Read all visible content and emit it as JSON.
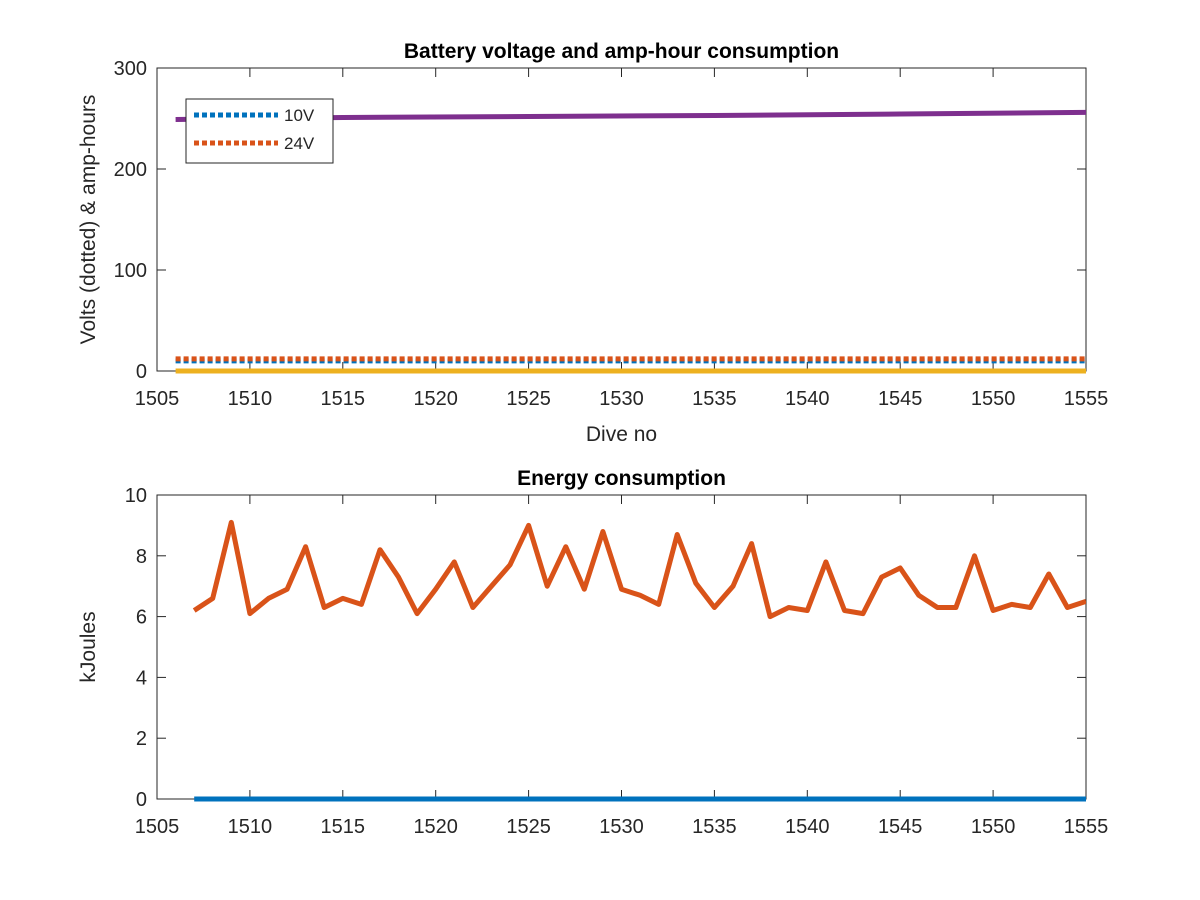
{
  "figure": {
    "background": "#ffffff"
  },
  "chart_data": [
    {
      "type": "line",
      "title": "Battery voltage and amp-hour consumption",
      "xlabel": "Dive no",
      "ylabel": "Volts (dotted) & amp-hours",
      "xlim": [
        1505,
        1555
      ],
      "ylim": [
        0,
        300
      ],
      "xticks": [
        1505,
        1510,
        1515,
        1520,
        1525,
        1530,
        1535,
        1540,
        1545,
        1550,
        1555
      ],
      "yticks": [
        0,
        100,
        200,
        300
      ],
      "grid": false,
      "legend_position": "top-left",
      "series": [
        {
          "name": "10V",
          "style": "dotted",
          "color": "#0072bd",
          "x": [
            1506,
            1555
          ],
          "y": [
            10,
            10
          ]
        },
        {
          "name": "24V",
          "style": "dotted",
          "color": "#d95319",
          "x": [
            1506,
            1555
          ],
          "y": [
            12,
            12
          ]
        },
        {
          "style": "solid",
          "color": "#edb120",
          "x": [
            1506,
            1555
          ],
          "y": [
            0,
            0
          ]
        },
        {
          "style": "solid",
          "color": "#7e2f8e",
          "x": [
            1506,
            1515,
            1525,
            1535,
            1545,
            1555
          ],
          "y": [
            249,
            251,
            252,
            253,
            254.5,
            256
          ]
        }
      ]
    },
    {
      "type": "line",
      "title": "Energy consumption",
      "xlabel": "",
      "ylabel": "kJoules",
      "xlim": [
        1505,
        1555
      ],
      "ylim": [
        0,
        10
      ],
      "xticks": [
        1505,
        1510,
        1515,
        1520,
        1525,
        1530,
        1535,
        1540,
        1545,
        1550,
        1555
      ],
      "yticks": [
        0,
        2,
        4,
        6,
        8,
        10
      ],
      "grid": false,
      "series": [
        {
          "style": "solid",
          "color": "#0072bd",
          "x": [
            1507,
            1555
          ],
          "y": [
            0,
            0
          ]
        },
        {
          "style": "solid",
          "color": "#d95319",
          "x": [
            1507,
            1508,
            1509,
            1510,
            1511,
            1512,
            1513,
            1514,
            1515,
            1516,
            1517,
            1518,
            1519,
            1520,
            1521,
            1522,
            1523,
            1524,
            1525,
            1526,
            1527,
            1528,
            1529,
            1530,
            1531,
            1532,
            1533,
            1534,
            1535,
            1536,
            1537,
            1538,
            1539,
            1540,
            1541,
            1542,
            1543,
            1544,
            1545,
            1546,
            1547,
            1548,
            1549,
            1550,
            1551,
            1552,
            1553,
            1554,
            1555
          ],
          "y": [
            6.2,
            6.6,
            9.1,
            6.1,
            6.6,
            6.9,
            8.3,
            6.3,
            6.6,
            6.4,
            8.2,
            7.3,
            6.1,
            6.9,
            7.8,
            6.3,
            7.0,
            7.7,
            9.0,
            7.0,
            8.3,
            6.9,
            8.8,
            6.9,
            6.7,
            6.4,
            8.7,
            7.1,
            6.3,
            7.0,
            8.4,
            6.0,
            6.3,
            6.2,
            7.8,
            6.2,
            6.1,
            7.3,
            7.6,
            6.7,
            6.3,
            6.3,
            8.0,
            6.2,
            6.4,
            6.3,
            7.4,
            6.3,
            6.5
          ]
        }
      ]
    }
  ]
}
